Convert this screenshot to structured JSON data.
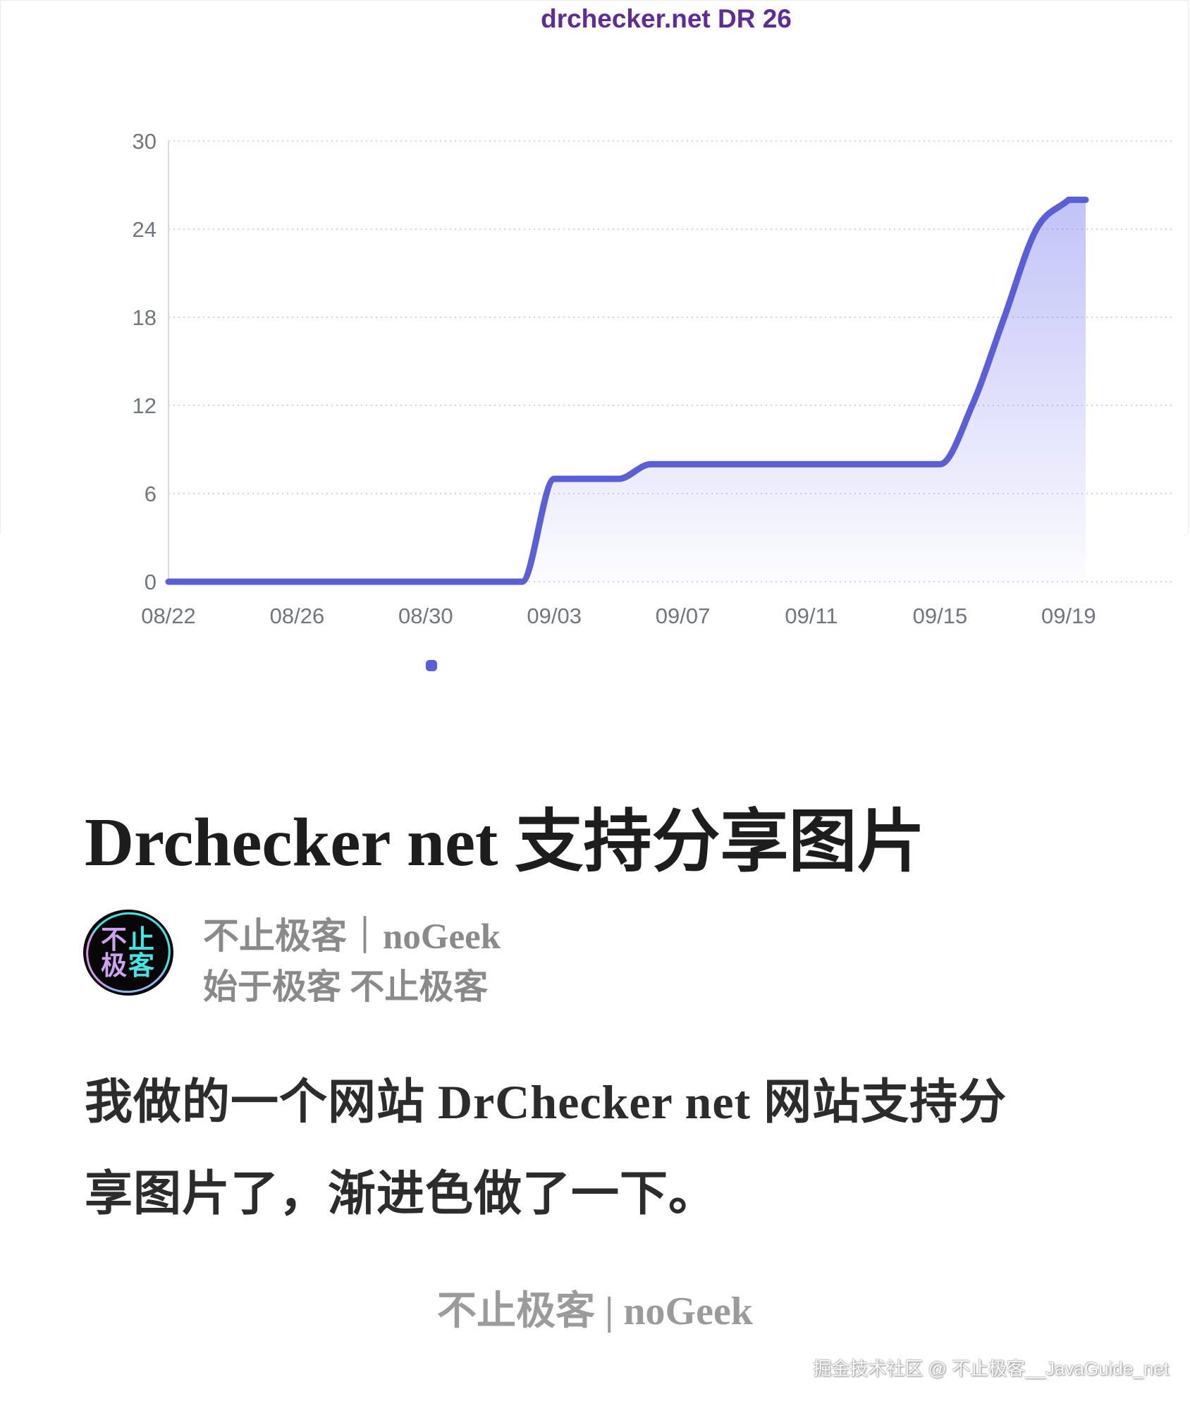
{
  "chart_data": {
    "type": "area",
    "title": "drchecker.net DR 26",
    "x": [
      "08/22",
      "08/23",
      "08/24",
      "08/25",
      "08/26",
      "08/27",
      "08/28",
      "08/29",
      "08/30",
      "08/31",
      "09/01",
      "09/02",
      "09/03",
      "09/04",
      "09/05",
      "09/06",
      "09/07",
      "09/08",
      "09/09",
      "09/10",
      "09/11",
      "09/12",
      "09/13",
      "09/14",
      "09/15",
      "09/16",
      "09/17",
      "09/18",
      "09/19"
    ],
    "values": [
      0,
      0,
      0,
      0,
      0,
      0,
      0,
      0,
      0,
      0,
      0,
      0,
      7,
      7,
      7,
      8,
      8,
      8,
      8,
      8,
      8,
      8,
      8,
      8,
      8,
      12,
      18,
      24,
      26
    ],
    "xticks": [
      "08/22",
      "08/26",
      "08/30",
      "09/03",
      "09/07",
      "09/11",
      "09/15",
      "09/19"
    ],
    "yticks": [
      30,
      24,
      18,
      12,
      6,
      0
    ],
    "ylim": [
      0,
      30
    ],
    "grid": "dotted-horizontal",
    "legend": "single unnamed series marker below x-axis",
    "colors": {
      "title": "#5e2b97",
      "line": "#5a5fd8",
      "fill_top": "rgba(99,102,235,0.45)",
      "fill_bottom": "rgba(99,102,235,0.02)",
      "gridline": "#d4d4d8",
      "axis_line": "#dcdcdf",
      "tick_text": "#71767e"
    }
  },
  "post": {
    "title": "Drchecker net 支持分享图片",
    "avatar_line1": "不止",
    "avatar_line2": "极客",
    "avatar_colors": [
      "#cda2f0",
      "#3fe7e6"
    ],
    "author_name": "不止极客｜noGeek",
    "author_sub": "始于极客 不止极客",
    "body_line1": "我做的一个网站 DrChecker net 网站支持分",
    "body_line2": "享图片了，渐进色做了一下。",
    "footer": "不止极客 | noGeek"
  },
  "watermark": {
    "text": "掘金技术社区 @ 不止极客__JavaGuide_net"
  }
}
